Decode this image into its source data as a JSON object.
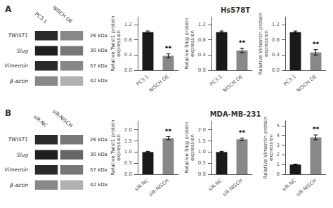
{
  "chart_data": [
    {
      "type": "blot",
      "title": "A",
      "rows": [
        "TWIST1",
        "Slug",
        "Vimentin",
        "β-actin"
      ],
      "kda": [
        "26 kDa",
        "30 kDa",
        "57 kDa",
        "42 kDa"
      ],
      "series": [
        {
          "name": "PC3.1",
          "colors": [
            "#2a2a2a",
            "#1e1e1e",
            "#2a2a2a",
            "#888888"
          ]
        },
        {
          "name": "NISCH OE",
          "colors": [
            "#888888",
            "#777777",
            "#888888",
            "#b0b0b0"
          ]
        }
      ]
    },
    {
      "type": "bar",
      "categories": [
        "PC3.1",
        "NISCH OE"
      ],
      "values": [
        1.0,
        0.38
      ],
      "errors": [
        0.03,
        0.05
      ],
      "colors": [
        "#1a1a1a",
        "#888888"
      ],
      "ylabel": "Relative Twist1 protein\nexpression",
      "ylim": [
        0,
        1.4
      ],
      "yticks": [
        {
          "value": 0,
          "label": "0.0"
        },
        0.4,
        0.8,
        1.2
      ],
      "annotations": [
        {
          "text": "**",
          "x": "NISCH OE"
        }
      ]
    },
    {
      "type": "bar",
      "title": "Hs578T",
      "categories": [
        "PC3.1",
        "NISCH OE"
      ],
      "values": [
        1.0,
        0.52
      ],
      "errors": [
        0.03,
        0.06
      ],
      "colors": [
        "#1a1a1a",
        "#888888"
      ],
      "ylabel": "Relative Slug protein\nexpression",
      "ylim": [
        0,
        1.4
      ],
      "yticks": [
        {
          "value": 0,
          "label": "0.0"
        },
        0.4,
        0.8,
        1.2
      ],
      "annotations": [
        {
          "text": "**",
          "x": "NISCH OE"
        }
      ]
    },
    {
      "type": "bar",
      "categories": [
        "PC3.1",
        "NISCH OE"
      ],
      "values": [
        1.0,
        0.47
      ],
      "errors": [
        0.03,
        0.07
      ],
      "colors": [
        "#1a1a1a",
        "#888888"
      ],
      "ylabel": "Relative Vimentin protein\nexpression",
      "ylim": [
        0,
        1.4
      ],
      "yticks": [
        {
          "value": 0,
          "label": "0.0"
        },
        0.4,
        0.8,
        1.2
      ],
      "annotations": [
        {
          "text": "**",
          "x": "NISCH OE"
        }
      ]
    },
    {
      "type": "blot",
      "title": "B",
      "rows": [
        "TWIST1",
        "Slug",
        "Vimentin",
        "β-actin"
      ],
      "kda": [
        "26 kDa",
        "30 kDa",
        "57 kDa",
        "42 kDa"
      ],
      "series": [
        {
          "name": "siR-NC",
          "colors": [
            "#2a2a2a",
            "#1e1e1e",
            "#2a2a2a",
            "#888888"
          ]
        },
        {
          "name": "siR-NISCH",
          "colors": [
            "#777777",
            "#666666",
            "#777777",
            "#b0b0b0"
          ]
        }
      ]
    },
    {
      "type": "bar",
      "categories": [
        "siR-NC",
        "siR-NISCH"
      ],
      "values": [
        1.0,
        1.62
      ],
      "errors": [
        0.03,
        0.07
      ],
      "colors": [
        "#1a1a1a",
        "#888888"
      ],
      "ylabel": "Relative Twist1 protein\nexpression",
      "ylim": [
        0,
        2.4
      ],
      "yticks": [
        {
          "value": 0,
          "label": "0.0"
        },
        0.5,
        {
          "value": 1,
          "label": "1.0"
        },
        1.5,
        {
          "value": 2,
          "label": "2.0"
        }
      ],
      "annotations": [
        {
          "text": "**",
          "x": "siR-NISCH"
        }
      ]
    },
    {
      "type": "bar",
      "title": "MDA-MB-231",
      "categories": [
        "siR-NC",
        "siR-NISCH"
      ],
      "values": [
        1.0,
        1.57
      ],
      "errors": [
        0.03,
        0.06
      ],
      "colors": [
        "#1a1a1a",
        "#888888"
      ],
      "ylabel": "Relative Slug protein\nexpression",
      "ylim": [
        0,
        2.4
      ],
      "yticks": [
        {
          "value": 0,
          "label": "0.0"
        },
        0.5,
        {
          "value": 1,
          "label": "1.0"
        },
        1.5,
        {
          "value": 2,
          "label": "2.0"
        }
      ],
      "annotations": [
        {
          "text": "**",
          "x": "siR-NISCH"
        }
      ]
    },
    {
      "type": "bar",
      "categories": [
        "siR-NC",
        "siR-NISCH"
      ],
      "values": [
        1.0,
        3.8
      ],
      "errors": [
        0.05,
        0.25
      ],
      "colors": [
        "#1a1a1a",
        "#888888"
      ],
      "ylabel": "Relative Vimentin protein\nexpression",
      "ylim": [
        0,
        5.5
      ],
      "yticks": [
        0,
        1,
        2,
        3,
        4,
        5
      ],
      "annotations": [
        {
          "text": "**",
          "x": "siR-NISCH"
        }
      ]
    }
  ]
}
